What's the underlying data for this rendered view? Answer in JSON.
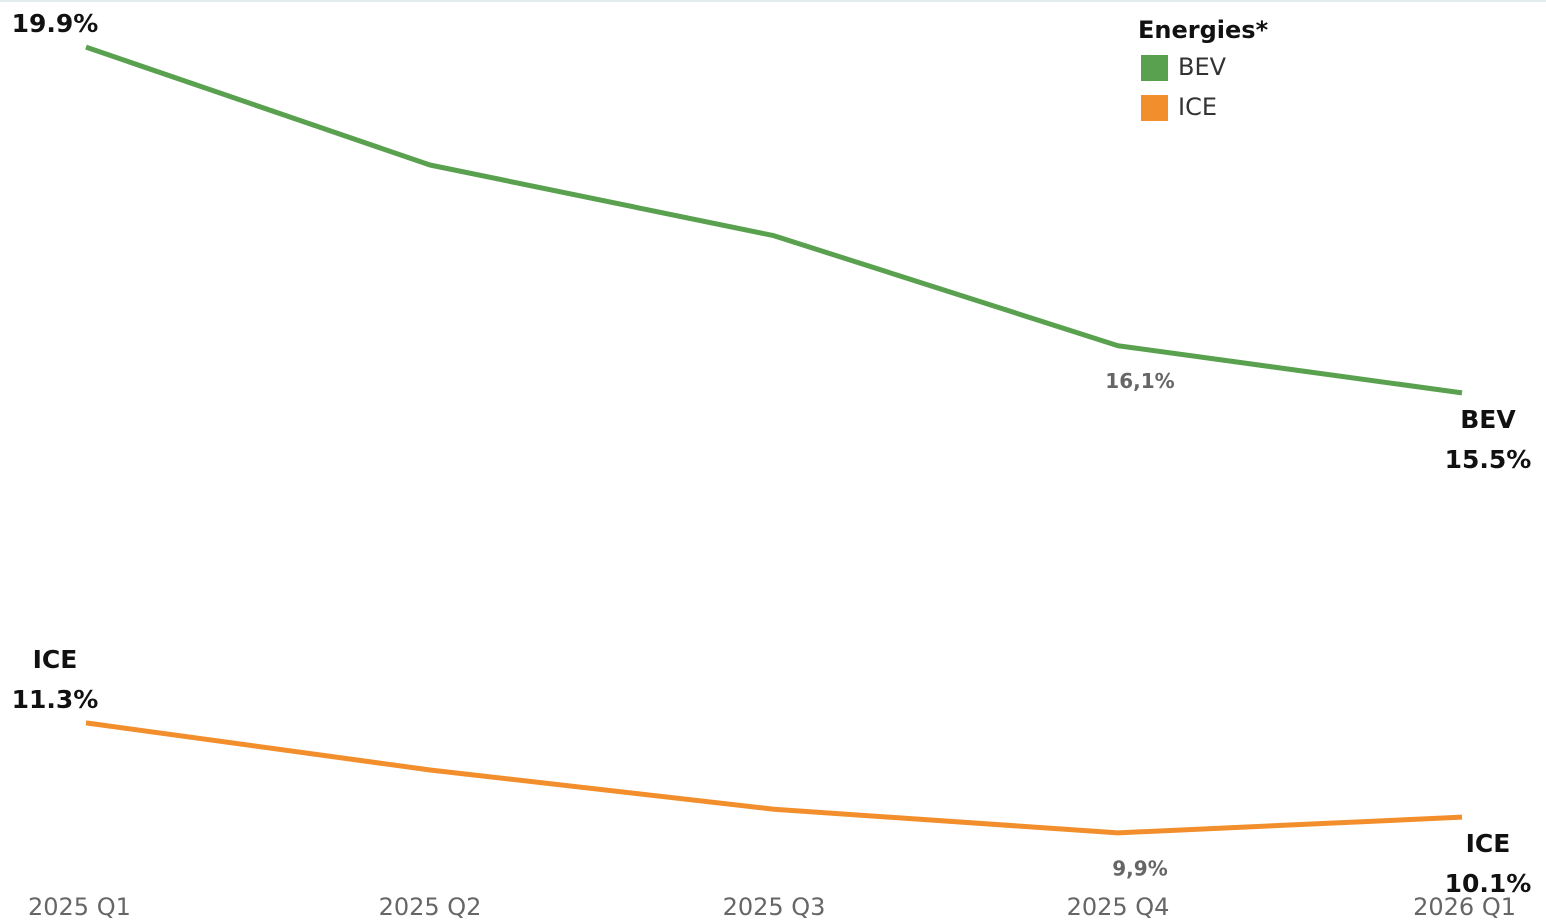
{
  "chart_data": {
    "type": "line",
    "legend_title": "Energies*",
    "categories": [
      "2025 Q1",
      "2025 Q2",
      "2025 Q3",
      "2025 Q4",
      "2026 Q1"
    ],
    "series": [
      {
        "name": "BEV",
        "color": "#59a14f",
        "values": [
          19.9,
          18.4,
          17.5,
          16.1,
          15.5
        ],
        "value_labels": [
          "19.9%",
          null,
          null,
          "16,1%",
          "15.5%"
        ]
      },
      {
        "name": "ICE",
        "color": "#f28e2b",
        "values": [
          11.3,
          10.7,
          10.2,
          9.9,
          10.1
        ],
        "value_labels": [
          "11.3%",
          null,
          null,
          "9,9%",
          "10.1%"
        ]
      }
    ],
    "ylim": [
      9.3,
      20.5
    ],
    "legend": "top-right"
  }
}
